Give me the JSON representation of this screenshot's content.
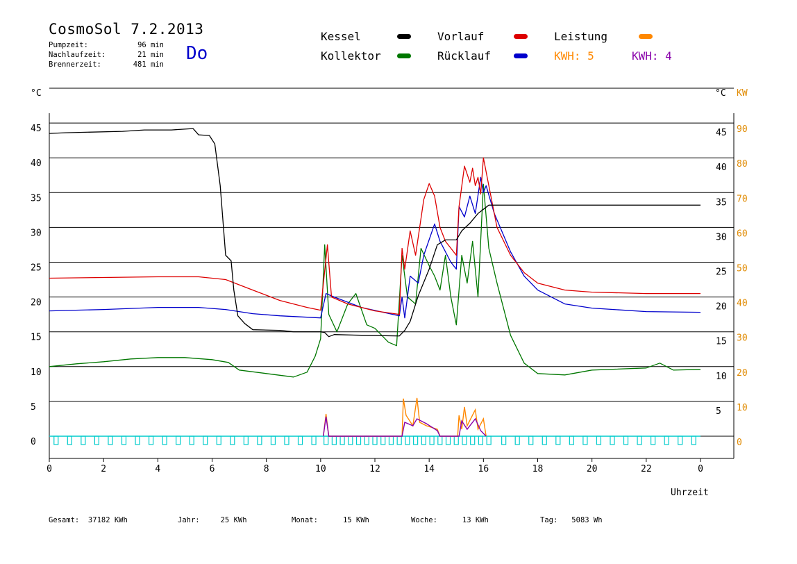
{
  "header": {
    "title": "CosmoSol 7.2.2013",
    "day": "Do",
    "stats": [
      {
        "label": "Pumpzeit:",
        "value": "96 min"
      },
      {
        "label": "Nachlaufzeit:",
        "value": "21 min"
      },
      {
        "label": "Brennerzeit:",
        "value": "481 min"
      }
    ]
  },
  "legend": {
    "kessel": "Kessel",
    "kollektor": "Kollektor",
    "vorlauf": "Vorlauf",
    "ruecklauf": "Rücklauf",
    "leistung": "Leistung",
    "kwh1": "KWH: 5",
    "kwh2": "KWH: 4"
  },
  "axes": {
    "left_unit": "°C",
    "right_unit_c": "°C",
    "right_unit_kw": "KW",
    "xlabel": "Uhrzeit"
  },
  "footer": [
    {
      "label": "Gesamt:",
      "value": "37182 KWh"
    },
    {
      "label": "Jahr:",
      "value": "25 KWh"
    },
    {
      "label": "Monat:",
      "value": "15 KWh"
    },
    {
      "label": "Woche:",
      "value": "13 KWh"
    },
    {
      "label": "Tag:",
      "value": "5083 Wh"
    }
  ],
  "colors": {
    "kessel": "#000000",
    "kollektor": "#007700",
    "vorlauf": "#dd0000",
    "ruecklauf": "#0000cc",
    "leistung": "#ff8800",
    "kwh2": "#8800aa",
    "pump": "#00cccc",
    "axis_kw": "#e08a00"
  },
  "chart_data": {
    "type": "line",
    "x_range": [
      0,
      24
    ],
    "x_ticks": [
      "0",
      "2",
      "4",
      "6",
      "8",
      "10",
      "12",
      "14",
      "16",
      "18",
      "20",
      "22",
      "0"
    ],
    "y_left_ticks": [
      "0",
      "5",
      "10",
      "15",
      "20",
      "25",
      "30",
      "35",
      "40",
      "45"
    ],
    "y_right_c_ticks": [
      "5",
      "10",
      "15",
      "20",
      "25",
      "30",
      "35",
      "40",
      "45"
    ],
    "y_right_kw_ticks": [
      "0",
      "10",
      "20",
      "30",
      "40",
      "50",
      "60",
      "70",
      "80",
      "90"
    ],
    "ylim": [
      0,
      45
    ],
    "grid": true,
    "series": [
      {
        "name": "Kessel",
        "color_key": "kessel",
        "points": [
          [
            0,
            43.5
          ],
          [
            0.6,
            43.6
          ],
          [
            2.7,
            43.8
          ],
          [
            3.5,
            44.0
          ],
          [
            4.5,
            44.0
          ],
          [
            5.3,
            44.2
          ],
          [
            5.5,
            43.3
          ],
          [
            5.9,
            43.2
          ],
          [
            6.1,
            42.0
          ],
          [
            6.3,
            36
          ],
          [
            6.5,
            26
          ],
          [
            6.7,
            25.2
          ],
          [
            6.8,
            21
          ],
          [
            6.95,
            17.3
          ],
          [
            7.2,
            16.2
          ],
          [
            7.5,
            15.3
          ],
          [
            8.5,
            15.2
          ],
          [
            9.0,
            15.0
          ],
          [
            10.0,
            15.0
          ],
          [
            10.15,
            14.9
          ],
          [
            10.3,
            14.3
          ],
          [
            10.5,
            14.6
          ],
          [
            11.5,
            14.5
          ],
          [
            12.9,
            14.4
          ],
          [
            13.1,
            15.2
          ],
          [
            13.3,
            16.5
          ],
          [
            13.6,
            20.2
          ],
          [
            14.0,
            24.0
          ],
          [
            14.3,
            27.5
          ],
          [
            14.6,
            28.2
          ],
          [
            15.0,
            28.2
          ],
          [
            15.2,
            29.5
          ],
          [
            15.5,
            30.6
          ],
          [
            15.8,
            32.0
          ],
          [
            16.2,
            33.2
          ],
          [
            16.3,
            33.2
          ],
          [
            24,
            33.2
          ]
        ]
      },
      {
        "name": "Vorlauf",
        "color_key": "vorlauf",
        "points": [
          [
            0,
            22.7
          ],
          [
            2,
            22.8
          ],
          [
            4,
            22.9
          ],
          [
            5.5,
            22.9
          ],
          [
            6.5,
            22.5
          ],
          [
            7.5,
            21.0
          ],
          [
            8.5,
            19.5
          ],
          [
            9.5,
            18.5
          ],
          [
            10.0,
            18.1
          ],
          [
            10.25,
            27.5
          ],
          [
            10.4,
            20.0
          ],
          [
            11.0,
            19.0
          ],
          [
            12.0,
            18.0
          ],
          [
            12.9,
            17.5
          ],
          [
            13.0,
            27
          ],
          [
            13.1,
            24
          ],
          [
            13.3,
            29.5
          ],
          [
            13.5,
            26
          ],
          [
            13.8,
            34
          ],
          [
            14.0,
            36.3
          ],
          [
            14.2,
            34.5
          ],
          [
            14.4,
            30
          ],
          [
            14.6,
            28
          ],
          [
            15.0,
            26.0
          ],
          [
            15.1,
            33
          ],
          [
            15.3,
            38.8
          ],
          [
            15.5,
            36.5
          ],
          [
            15.6,
            38.5
          ],
          [
            15.7,
            36.0
          ],
          [
            15.8,
            37.2
          ],
          [
            15.9,
            34.8
          ],
          [
            16.0,
            40.0
          ],
          [
            16.2,
            36.0
          ],
          [
            16.5,
            30.0
          ],
          [
            17.0,
            26.0
          ],
          [
            17.5,
            23.5
          ],
          [
            18.0,
            22.0
          ],
          [
            19.0,
            21.0
          ],
          [
            20,
            20.7
          ],
          [
            22,
            20.5
          ],
          [
            24,
            20.5
          ]
        ]
      },
      {
        "name": "Rücklauf",
        "color_key": "ruecklauf",
        "points": [
          [
            0,
            18.0
          ],
          [
            2,
            18.2
          ],
          [
            4,
            18.5
          ],
          [
            5.5,
            18.5
          ],
          [
            6.5,
            18.2
          ],
          [
            7.5,
            17.6
          ],
          [
            8.5,
            17.3
          ],
          [
            9.5,
            17.1
          ],
          [
            10.0,
            17.0
          ],
          [
            10.2,
            20.5
          ],
          [
            10.5,
            20.0
          ],
          [
            11.5,
            18.5
          ],
          [
            12.9,
            17.3
          ],
          [
            13.0,
            20
          ],
          [
            13.1,
            17
          ],
          [
            13.3,
            23
          ],
          [
            13.6,
            22
          ],
          [
            13.8,
            26
          ],
          [
            14.2,
            30.5
          ],
          [
            14.4,
            28
          ],
          [
            14.8,
            25
          ],
          [
            15.0,
            24.0
          ],
          [
            15.1,
            33
          ],
          [
            15.3,
            31.5
          ],
          [
            15.5,
            34.5
          ],
          [
            15.7,
            32
          ],
          [
            15.9,
            37.2
          ],
          [
            16.0,
            35
          ],
          [
            16.1,
            36.0
          ],
          [
            16.4,
            32.0
          ],
          [
            17.0,
            26.5
          ],
          [
            17.5,
            23.0
          ],
          [
            18.0,
            21.0
          ],
          [
            19.0,
            19.0
          ],
          [
            20,
            18.4
          ],
          [
            22,
            17.9
          ],
          [
            24,
            17.8
          ]
        ]
      },
      {
        "name": "Kollektor",
        "color_key": "kollektor",
        "points": [
          [
            0,
            10.0
          ],
          [
            1.0,
            10.4
          ],
          [
            2.0,
            10.7
          ],
          [
            3.0,
            11.1
          ],
          [
            4.0,
            11.3
          ],
          [
            5.0,
            11.3
          ],
          [
            6.0,
            11.0
          ],
          [
            6.6,
            10.6
          ],
          [
            7.0,
            9.5
          ],
          [
            8.0,
            9.0
          ],
          [
            9.0,
            8.5
          ],
          [
            9.5,
            9.2
          ],
          [
            9.8,
            11.5
          ],
          [
            10.0,
            14.0
          ],
          [
            10.15,
            27.5
          ],
          [
            10.3,
            17.5
          ],
          [
            10.6,
            15.0
          ],
          [
            11.0,
            19.0
          ],
          [
            11.3,
            20.5
          ],
          [
            11.7,
            16.0
          ],
          [
            12.0,
            15.5
          ],
          [
            12.5,
            13.5
          ],
          [
            12.8,
            13.0
          ],
          [
            13.0,
            26
          ],
          [
            13.2,
            20
          ],
          [
            13.5,
            19
          ],
          [
            13.7,
            27
          ],
          [
            14.0,
            24.5
          ],
          [
            14.2,
            23
          ],
          [
            14.4,
            21
          ],
          [
            14.6,
            26
          ],
          [
            14.8,
            20
          ],
          [
            15.0,
            16
          ],
          [
            15.2,
            26
          ],
          [
            15.4,
            22
          ],
          [
            15.6,
            28
          ],
          [
            15.8,
            20
          ],
          [
            16.0,
            36.2
          ],
          [
            16.2,
            27
          ],
          [
            16.5,
            22
          ],
          [
            17.0,
            14.5
          ],
          [
            17.5,
            10.5
          ],
          [
            18.0,
            9.0
          ],
          [
            19.0,
            8.8
          ],
          [
            20,
            9.5
          ],
          [
            22,
            9.8
          ],
          [
            22.5,
            10.5
          ],
          [
            23,
            9.5
          ],
          [
            24,
            9.6
          ]
        ]
      }
    ],
    "power_series": [
      {
        "name": "Leistung",
        "color_key": "leistung",
        "points": [
          [
            10.1,
            0
          ],
          [
            10.2,
            3.2
          ],
          [
            10.3,
            0
          ],
          [
            13.0,
            0
          ],
          [
            13.05,
            5.4
          ],
          [
            13.15,
            3.0
          ],
          [
            13.4,
            1.5
          ],
          [
            13.55,
            5.5
          ],
          [
            13.65,
            2.0
          ],
          [
            13.9,
            1.5
          ],
          [
            14.3,
            1.0
          ],
          [
            14.4,
            0
          ],
          [
            15.05,
            0
          ],
          [
            15.1,
            3.0
          ],
          [
            15.2,
            1.0
          ],
          [
            15.3,
            4.2
          ],
          [
            15.4,
            1.5
          ],
          [
            15.7,
            3.8
          ],
          [
            15.8,
            1.0
          ],
          [
            16.0,
            2.5
          ],
          [
            16.1,
            0
          ]
        ]
      },
      {
        "name": "KWH 4",
        "color_key": "kwh2",
        "points": [
          [
            10.1,
            0
          ],
          [
            10.2,
            2.8
          ],
          [
            10.3,
            0
          ],
          [
            13.0,
            0
          ],
          [
            13.1,
            2.0
          ],
          [
            13.4,
            1.5
          ],
          [
            13.55,
            2.5
          ],
          [
            13.9,
            1.8
          ],
          [
            14.3,
            0.8
          ],
          [
            14.4,
            0
          ],
          [
            15.1,
            0
          ],
          [
            15.2,
            2.2
          ],
          [
            15.4,
            1.0
          ],
          [
            15.7,
            2.5
          ],
          [
            15.9,
            0.8
          ],
          [
            16.1,
            0
          ]
        ]
      }
    ]
  }
}
